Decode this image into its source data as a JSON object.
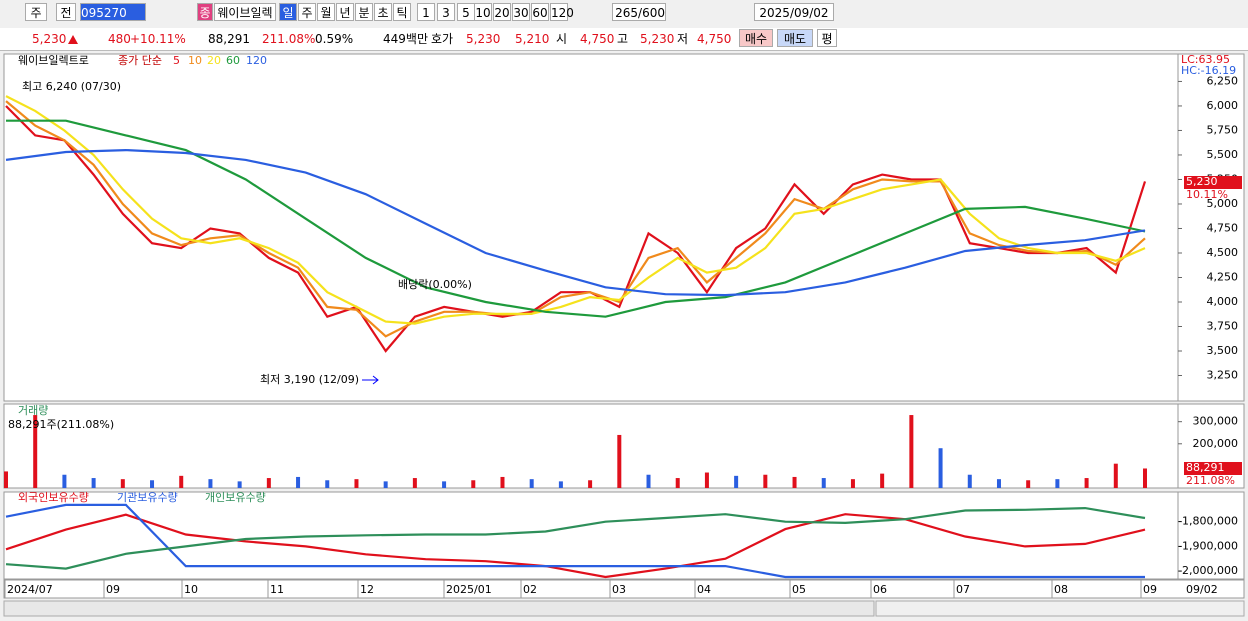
{
  "toolbar": {
    "market": "주",
    "prev": "전",
    "code": "095270",
    "badge": "종",
    "name": "웨이브일렉",
    "periods": [
      "일",
      "주",
      "월",
      "년",
      "분",
      "초",
      "틱"
    ],
    "intervals": [
      "1",
      "3",
      "5",
      "10",
      "20",
      "30",
      "60",
      "120"
    ],
    "count": "265",
    "max": "/600",
    "date": "2025/09/02"
  },
  "quote": {
    "price": "5,230",
    "change": "480",
    "change_pct": "+10.11%",
    "volume": "88,291",
    "volume_ratio": "211.08%",
    "turnover": "0.59%",
    "amount": "449백만",
    "hoga_label": "호가",
    "ask": "5,230",
    "bid": "5,210",
    "open_label": "시",
    "open": "4,750",
    "high_label": "고",
    "high": "5,230",
    "low_label": "저",
    "low": "4,750",
    "buy": "매수",
    "sell": "매도",
    "avg": "평"
  },
  "chart_data": [
    {
      "type": "line",
      "title": "웨이브일렉트로",
      "subtitle": "종가 단순",
      "lc": "LC:63.95",
      "hc": "HC:-16.19",
      "annotations": [
        "최고 6,240 (07/30)",
        "배당락(0.00%)",
        "최저 3,190 (12/09)"
      ],
      "current_label": "5,230",
      "current_pct": "10.11%",
      "ylim": [
        2990,
        6530
      ],
      "yticks": [
        {
          "value": 3250,
          "label": "3,250"
        },
        {
          "value": 3500,
          "label": "3,500"
        },
        {
          "value": 3750,
          "label": "3,750"
        },
        {
          "value": 4000,
          "label": "4,000"
        },
        {
          "value": 4250,
          "label": "4,250"
        },
        {
          "value": 4500,
          "label": "4,500"
        },
        {
          "value": 4750,
          "label": "4,750"
        },
        {
          "value": 5000,
          "label": "5,000"
        },
        {
          "value": 5250,
          "label": "5,250"
        },
        {
          "value": 5500,
          "label": "5,500"
        },
        {
          "value": 5750,
          "label": "5,750"
        },
        {
          "value": 6000,
          "label": "6,000"
        },
        {
          "value": 6250,
          "label": "6,250"
        }
      ],
      "series": [
        {
          "name": "5",
          "color": "#e0101c",
          "values": [
            6000,
            5700,
            5650,
            5300,
            4900,
            4600,
            4550,
            4750,
            4700,
            4450,
            4300,
            3850,
            3950,
            3500,
            3850,
            3950,
            3900,
            3850,
            3900,
            4100,
            4100,
            3950,
            4700,
            4500,
            4100,
            4550,
            4750,
            5200,
            4900,
            5200,
            5300,
            5250,
            5250,
            4600,
            4550,
            4500,
            4500,
            4550,
            4300,
            5230
          ]
        },
        {
          "name": "10",
          "color": "#f08a1c",
          "values": [
            6050,
            5800,
            5650,
            5400,
            5000,
            4700,
            4580,
            4650,
            4680,
            4500,
            4350,
            3950,
            3920,
            3650,
            3800,
            3900,
            3900,
            3870,
            3880,
            4050,
            4100,
            4000,
            4450,
            4550,
            4200,
            4450,
            4700,
            5050,
            4950,
            5150,
            5250,
            5230,
            5230,
            4700,
            4580,
            4520,
            4500,
            4520,
            4380,
            4650
          ]
        },
        {
          "name": "20",
          "color": "#f5e21c",
          "values": [
            6100,
            5950,
            5750,
            5500,
            5150,
            4850,
            4650,
            4600,
            4650,
            4550,
            4400,
            4100,
            3950,
            3800,
            3780,
            3850,
            3880,
            3880,
            3880,
            3950,
            4050,
            4020,
            4250,
            4450,
            4300,
            4350,
            4550,
            4900,
            4950,
            5050,
            5150,
            5200,
            5250,
            4900,
            4650,
            4550,
            4500,
            4500,
            4420,
            4550
          ]
        },
        {
          "name": "60",
          "color": "#1e9a3c",
          "values": [
            5850,
            5850,
            5700,
            5550,
            5250,
            4850,
            4450,
            4150,
            4000,
            3900,
            3850,
            4000,
            4050,
            4200,
            4450,
            4700,
            4950,
            4970,
            4850,
            4720
          ]
        },
        {
          "name": "120",
          "color": "#2a5ee0",
          "values": [
            5450,
            5530,
            5550,
            5520,
            5450,
            5320,
            5100,
            4800,
            4500,
            4320,
            4150,
            4080,
            4070,
            4100,
            4200,
            4350,
            4520,
            4580,
            4630,
            4730
          ]
        }
      ]
    },
    {
      "type": "bar",
      "title": "거래량",
      "subtitle": "88,291주(211.08%)",
      "current_label": "88,291",
      "current_pct": "211.08%",
      "ylim": [
        0,
        380000
      ],
      "yticks": [
        {
          "value": 200000,
          "label": "200,000"
        },
        {
          "value": 300000,
          "label": "300,000"
        }
      ],
      "values": [
        75000,
        330000,
        60000,
        45000,
        40000,
        35000,
        55000,
        40000,
        30000,
        45000,
        50000,
        35000,
        40000,
        30000,
        45000,
        30000,
        35000,
        50000,
        40000,
        30000,
        35000,
        240000,
        60000,
        45000,
        70000,
        55000,
        60000,
        50000,
        45000,
        40000,
        65000,
        330000,
        180000,
        60000,
        40000,
        35000,
        40000,
        45000,
        110000,
        88291
      ],
      "colors": [
        "#e0101c",
        "#e0101c",
        "#2a5ee0",
        "#2a5ee0",
        "#e0101c",
        "#2a5ee0",
        "#e0101c",
        "#2a5ee0",
        "#2a5ee0",
        "#e0101c",
        "#2a5ee0",
        "#2a5ee0",
        "#e0101c",
        "#2a5ee0",
        "#e0101c",
        "#2a5ee0",
        "#e0101c",
        "#e0101c",
        "#2a5ee0",
        "#2a5ee0",
        "#e0101c",
        "#e0101c",
        "#2a5ee0",
        "#e0101c",
        "#e0101c",
        "#2a5ee0",
        "#e0101c",
        "#e0101c",
        "#2a5ee0",
        "#e0101c",
        "#e0101c",
        "#e0101c",
        "#2a5ee0",
        "#2a5ee0",
        "#2a5ee0",
        "#e0101c",
        "#2a5ee0",
        "#e0101c",
        "#e0101c",
        "#e0101c"
      ]
    },
    {
      "type": "line",
      "ylim": [
        -2032000,
        -1680000
      ],
      "yticks": [
        {
          "value": -2000000,
          "label": "-2,000,000"
        },
        {
          "value": -1900000,
          "label": "-1,900,000"
        },
        {
          "value": -1800000,
          "label": "-1,800,000"
        }
      ],
      "series": [
        {
          "name": "외국인보유수량",
          "color": "#e0101c",
          "values": [
            -1912000,
            -1832000,
            -1772000,
            -1852000,
            -1880000,
            -1900000,
            -1932000,
            -1952000,
            -1960000,
            -1980000,
            -2024000,
            -1990000,
            -1950000,
            -1830000,
            -1770000,
            -1790000,
            -1860000,
            -1900000,
            -1890000,
            -1832000
          ]
        },
        {
          "name": "기관보유수량",
          "color": "#2a5ee0",
          "values": [
            -1780000,
            -1732000,
            -1732000,
            -1980000,
            -1980000,
            -1980000,
            -1980000,
            -1980000,
            -1980000,
            -1980000,
            -1980000,
            -1980000,
            -1980000,
            -2024000,
            -2024000,
            -2024000,
            -2024000,
            -2024000,
            -2024000,
            -2024000
          ]
        },
        {
          "name": "개인보유수량",
          "color": "#2e8f5a",
          "values": [
            -1972000,
            -1990000,
            -1930000,
            -1900000,
            -1870000,
            -1860000,
            -1855000,
            -1852000,
            -1852000,
            -1840000,
            -1800000,
            -1785000,
            -1770000,
            -1800000,
            -1805000,
            -1790000,
            -1755000,
            -1752000,
            -1745000,
            -1785000
          ]
        }
      ]
    }
  ],
  "x_axis": {
    "labels": [
      "2024/07",
      "09",
      "10",
      "11",
      "12",
      "2025/01",
      "02",
      "03",
      "04",
      "05",
      "06",
      "07",
      "08",
      "09"
    ],
    "last_date": "09/02"
  }
}
